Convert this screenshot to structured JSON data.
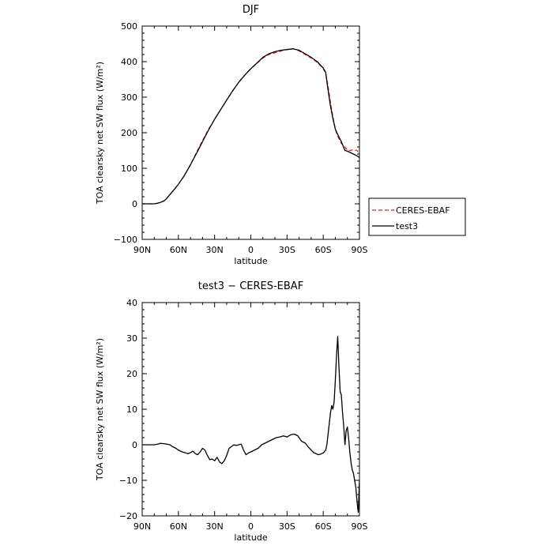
{
  "chart_data": [
    {
      "type": "line",
      "title": "DJF",
      "xlabel": "latitude",
      "ylabel": "TOA clearsky net SW flux (W/m²)",
      "xlim": [
        -90,
        90
      ],
      "ylim": [
        -100,
        500
      ],
      "x_tick_values": [
        -90,
        -60,
        -30,
        0,
        30,
        60,
        90
      ],
      "x_tick_labels": [
        "90N",
        "60N",
        "30N",
        "0",
        "30S",
        "60S",
        "90S"
      ],
      "y_tick_values": [
        -100,
        0,
        100,
        200,
        300,
        400,
        500
      ],
      "y_tick_labels": [
        "−100",
        "0",
        "100",
        "200",
        "300",
        "400",
        "500"
      ],
      "grid": false,
      "legend_position": "right-outside",
      "series": [
        {
          "name": "CERES-EBAF",
          "color": "#e8191d",
          "dash": "dashed",
          "x": [
            -90,
            -85,
            -80,
            -77,
            -75,
            -72,
            -70,
            -68,
            -65,
            -60,
            -55,
            -50,
            -45,
            -40,
            -35,
            -30,
            -25,
            -20,
            -15,
            -10,
            -5,
            0,
            5,
            10,
            15,
            20,
            25,
            30,
            35,
            40,
            45,
            50,
            55,
            60,
            62,
            64,
            66,
            68,
            70,
            72,
            75,
            78,
            80,
            82,
            85,
            88,
            90
          ],
          "y": [
            0,
            0,
            0,
            2,
            4,
            8,
            14,
            22,
            34,
            55,
            80,
            110,
            145,
            178,
            210,
            238,
            265,
            292,
            318,
            342,
            362,
            380,
            395,
            410,
            420,
            425,
            430,
            434,
            436,
            430,
            420,
            410,
            398,
            380,
            368,
            330,
            285,
            245,
            210,
            190,
            170,
            160,
            150,
            150,
            152,
            150,
            140
          ]
        },
        {
          "name": "test3",
          "color": "#000000",
          "dash": "solid",
          "x": [
            -90,
            -85,
            -80,
            -77,
            -75,
            -72,
            -70,
            -68,
            -65,
            -60,
            -55,
            -50,
            -45,
            -40,
            -35,
            -30,
            -25,
            -20,
            -15,
            -10,
            -5,
            0,
            5,
            10,
            15,
            20,
            25,
            30,
            35,
            40,
            45,
            50,
            55,
            60,
            62,
            64,
            66,
            68,
            70,
            72,
            75,
            78,
            80,
            82,
            85,
            88,
            90
          ],
          "y": [
            0,
            0,
            0,
            2,
            4,
            8,
            14,
            22,
            34,
            55,
            80,
            110,
            142,
            175,
            208,
            238,
            265,
            292,
            318,
            342,
            362,
            380,
            396,
            412,
            422,
            428,
            432,
            434,
            436,
            432,
            422,
            412,
            400,
            382,
            370,
            320,
            275,
            240,
            210,
            195,
            175,
            150,
            148,
            145,
            140,
            135,
            130
          ]
        }
      ]
    },
    {
      "type": "line",
      "title": "test3 − CERES-EBAF",
      "xlabel": "latitude",
      "ylabel": "TOA clearsky net SW flux (W/m²)",
      "xlim": [
        -90,
        90
      ],
      "ylim": [
        -20,
        40
      ],
      "x_tick_values": [
        -90,
        -60,
        -30,
        0,
        30,
        60,
        90
      ],
      "x_tick_labels": [
        "90N",
        "60N",
        "30N",
        "0",
        "30S",
        "60S",
        "90S"
      ],
      "y_tick_values": [
        -20,
        -10,
        0,
        10,
        20,
        30,
        40
      ],
      "y_tick_labels": [
        "−20",
        "−10",
        "0",
        "10",
        "20",
        "30",
        "40"
      ],
      "grid": false,
      "series": [
        {
          "color": "#000000",
          "dash": "solid",
          "x": [
            -90,
            -80,
            -77,
            -75,
            -72,
            -70,
            -67,
            -65,
            -62,
            -60,
            -57,
            -55,
            -52,
            -50,
            -48,
            -46,
            -44,
            -42,
            -40,
            -38,
            -36,
            -34,
            -32,
            -30,
            -28,
            -26,
            -24,
            -22,
            -20,
            -18,
            -16,
            -14,
            -12,
            -10,
            -8,
            -6,
            -4,
            -2,
            0,
            3,
            6,
            9,
            12,
            15,
            18,
            21,
            24,
            27,
            30,
            33,
            36,
            39,
            42,
            45,
            48,
            50,
            52,
            54,
            56,
            58,
            60,
            62,
            63,
            64,
            65,
            66,
            67,
            68,
            69,
            70,
            71,
            72,
            73,
            74,
            75,
            76,
            77,
            78,
            79,
            80,
            81,
            82,
            83,
            84,
            85,
            86,
            87,
            88,
            89,
            90
          ],
          "y": [
            0,
            0,
            0.2,
            0.4,
            0.3,
            0.2,
            0,
            -0.5,
            -1,
            -1.5,
            -2,
            -2.2,
            -2.5,
            -2.2,
            -1.8,
            -2.5,
            -2.8,
            -2,
            -1,
            -1.5,
            -3,
            -4.2,
            -4,
            -4.5,
            -3.5,
            -4.8,
            -5.3,
            -4.5,
            -3,
            -1,
            -0.5,
            0,
            -0.2,
            0,
            0.2,
            -1.5,
            -2.8,
            -2.3,
            -2,
            -1.5,
            -1,
            0,
            0.5,
            1,
            1.5,
            2,
            2.2,
            2.5,
            2.2,
            2.8,
            3,
            2.5,
            1,
            0.5,
            -0.8,
            -1.5,
            -2.2,
            -2.5,
            -2.8,
            -2.6,
            -2.3,
            -1.5,
            0,
            3,
            6,
            9,
            11,
            10,
            12,
            18,
            25,
            30.5,
            22,
            15,
            14,
            9,
            5,
            0,
            4,
            5,
            2,
            -2,
            -5,
            -7,
            -8,
            -10,
            -12,
            -16,
            -19,
            -10
          ]
        }
      ]
    }
  ]
}
